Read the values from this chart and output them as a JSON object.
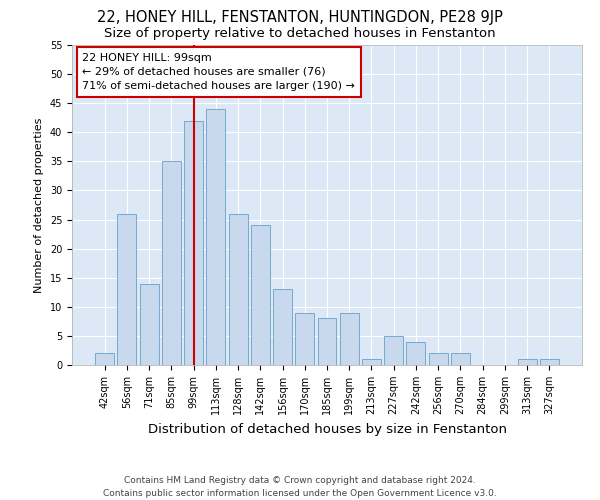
{
  "title1": "22, HONEY HILL, FENSTANTON, HUNTINGDON, PE28 9JP",
  "title2": "Size of property relative to detached houses in Fenstanton",
  "xlabel": "Distribution of detached houses by size in Fenstanton",
  "ylabel": "Number of detached properties",
  "categories": [
    "42sqm",
    "56sqm",
    "71sqm",
    "85sqm",
    "99sqm",
    "113sqm",
    "128sqm",
    "142sqm",
    "156sqm",
    "170sqm",
    "185sqm",
    "199sqm",
    "213sqm",
    "227sqm",
    "242sqm",
    "256sqm",
    "270sqm",
    "284sqm",
    "299sqm",
    "313sqm",
    "327sqm"
  ],
  "values": [
    2,
    26,
    14,
    35,
    42,
    44,
    26,
    24,
    13,
    9,
    8,
    9,
    1,
    5,
    4,
    2,
    2,
    0,
    0,
    1,
    1
  ],
  "bar_color": "#c8d9ee",
  "bar_edge_color": "#6a9fc8",
  "red_line_index": 4,
  "red_line_color": "#cc0000",
  "annotation_line1": "22 HONEY HILL: 99sqm",
  "annotation_line2": "← 29% of detached houses are smaller (76)",
  "annotation_line3": "71% of semi-detached houses are larger (190) →",
  "annotation_box_color": "#ffffff",
  "annotation_box_edge": "#cc0000",
  "ylim": [
    0,
    55
  ],
  "yticks": [
    0,
    5,
    10,
    15,
    20,
    25,
    30,
    35,
    40,
    45,
    50,
    55
  ],
  "fig_bg": "#ffffff",
  "plot_bg": "#dce8f5",
  "grid_color": "#ffffff",
  "footer1": "Contains HM Land Registry data © Crown copyright and database right 2024.",
  "footer2": "Contains public sector information licensed under the Open Government Licence v3.0.",
  "title1_fontsize": 10.5,
  "title2_fontsize": 9.5,
  "xlabel_fontsize": 9.5,
  "ylabel_fontsize": 8,
  "tick_fontsize": 7,
  "annotation_fontsize": 8,
  "footer_fontsize": 6.5
}
